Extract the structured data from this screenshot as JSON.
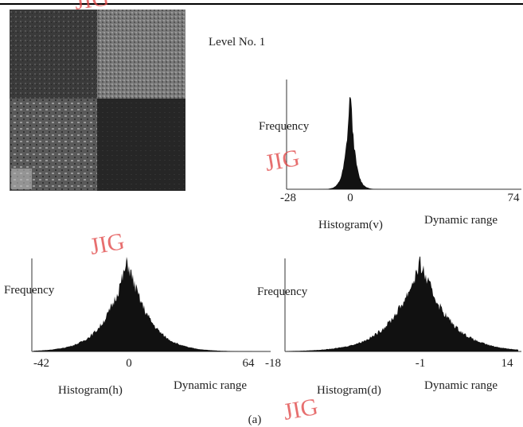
{
  "level_label": "Level No. 1",
  "panels": [
    {
      "ylabel": "Frequency",
      "xlabel": "Histogram(v)",
      "range_label": "Dynamic range",
      "ticks": [
        "-28",
        "0",
        "74"
      ]
    },
    {
      "ylabel": "Frequency",
      "xlabel": "Histogram(h)",
      "range_label": "Dynamic range",
      "ticks": [
        "-42",
        "0",
        "64"
      ]
    },
    {
      "ylabel": "Frequency",
      "xlabel": "Histogram(d)",
      "range_label": "Dynamic range",
      "ticks": [
        "-18",
        "-1",
        "14"
      ]
    }
  ],
  "caption": "(a)",
  "watermarks": [
    "JIG",
    "JIG",
    "JIG",
    "JIG"
  ]
}
